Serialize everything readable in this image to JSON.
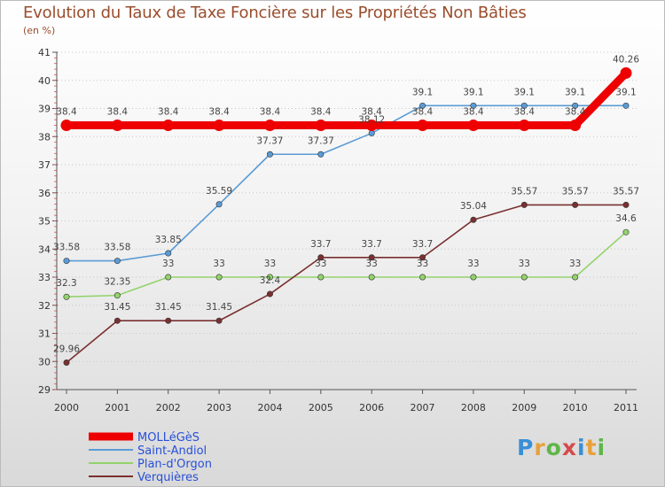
{
  "page": {
    "title": "Evolution du Taux de Taxe Foncière sur les Propriétés Non Bâties",
    "subtitle": "(en %)",
    "logo_text": "Proxiti"
  },
  "colors": {
    "title": "#9a4d2c",
    "grid": "#c8c8c8",
    "axis": "#555555",
    "legend_text": "#2850d8"
  },
  "chart_data": {
    "type": "line",
    "title": "Evolution du Taux de Taxe Foncière sur les Propriétés Non Bâties",
    "ylabel": "(en %)",
    "xlabel": "",
    "x": [
      "2000",
      "2001",
      "2002",
      "2003",
      "2004",
      "2005",
      "2006",
      "2007",
      "2008",
      "2009",
      "2010",
      "2011"
    ],
    "ylim": [
      29,
      41
    ],
    "yticks": [
      29,
      30,
      31,
      32,
      33,
      34,
      35,
      36,
      37,
      38,
      39,
      40,
      41
    ],
    "grid": "horizontal dotted",
    "legend": "bottom-left",
    "series": [
      {
        "name": "MOLLéGèS",
        "color": "#ee0000",
        "emphasis": true,
        "values": [
          38.4,
          38.4,
          38.4,
          38.4,
          38.4,
          38.4,
          38.4,
          38.4,
          38.4,
          38.4,
          38.4,
          40.26
        ],
        "labels": [
          "38.4",
          "38.4",
          "38.4",
          "38.4",
          "38.4",
          "38.4",
          "38.4",
          "38.4",
          "38.4",
          "38.4",
          "38.4",
          "40.26"
        ]
      },
      {
        "name": "Saint-Andiol",
        "color": "#5b9bd5",
        "values": [
          33.58,
          33.58,
          33.85,
          35.59,
          37.37,
          37.37,
          38.12,
          39.1,
          39.1,
          39.1,
          39.1,
          39.1
        ],
        "labels": [
          "33.58",
          "33.58",
          "33.85",
          "35.59",
          "37.37",
          "37.37",
          "38.12",
          "39.1",
          "39.1",
          "39.1",
          "39.1",
          "39.1"
        ]
      },
      {
        "name": "Plan-d'Orgon",
        "color": "#93d36b",
        "values": [
          32.3,
          32.35,
          33,
          33,
          33,
          33,
          33,
          33,
          33,
          33,
          33,
          34.6
        ],
        "labels": [
          "32.3",
          "32.35",
          "33",
          "33",
          "33",
          "33",
          "33",
          "33",
          "33",
          "33",
          "33",
          "34.6"
        ]
      },
      {
        "name": "Verquières",
        "color": "#7a3030",
        "values": [
          29.96,
          31.45,
          31.45,
          31.45,
          32.4,
          33.7,
          33.7,
          33.7,
          35.04,
          35.57,
          35.57,
          35.57
        ],
        "labels": [
          "29.96",
          "31.45",
          "31.45",
          "31.45",
          "32.4",
          "33.7",
          "33.7",
          "33.7",
          "35.04",
          "35.57",
          "35.57",
          "35.57"
        ]
      }
    ]
  }
}
